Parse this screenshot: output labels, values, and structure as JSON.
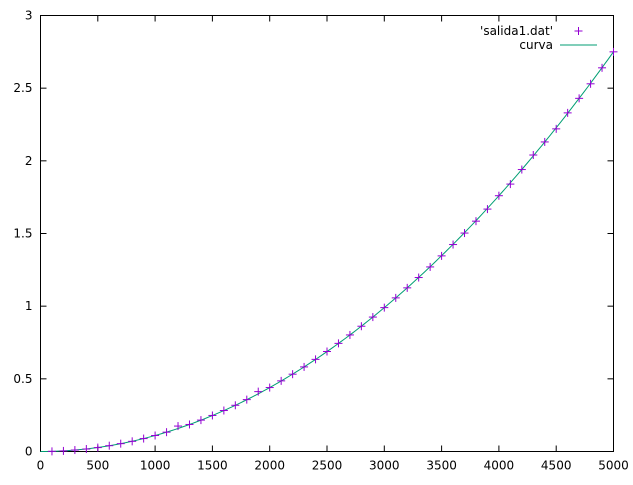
{
  "chart_data": {
    "type": "scatter",
    "title": "",
    "xlabel": "",
    "ylabel": "",
    "xlim": [
      0,
      5000
    ],
    "ylim": [
      0,
      3
    ],
    "x_ticks": [
      0,
      500,
      1000,
      1500,
      2000,
      2500,
      3000,
      3500,
      4000,
      4500,
      5000
    ],
    "y_ticks": [
      0,
      0.5,
      1,
      1.5,
      2,
      2.5,
      3
    ],
    "x_tick_labels": [
      "0",
      "500",
      "1000",
      "1500",
      "2000",
      "2500",
      "3000",
      "3500",
      "4000",
      "4500",
      "5000"
    ],
    "y_tick_labels": [
      "0",
      "0.5",
      "1",
      "1.5",
      "2",
      "2.5",
      "3"
    ],
    "grid": false,
    "legend_position": "top-right",
    "legend": [
      {
        "label": "'salida1.dat'",
        "style": "points",
        "color": "#9400d3",
        "marker": "plus"
      },
      {
        "label": "curva",
        "style": "line",
        "color": "#009e73"
      }
    ],
    "series": [
      {
        "name": "'salida1.dat'",
        "kind": "points",
        "color": "#9400d3",
        "marker": "plus",
        "x": [
          100,
          200,
          300,
          400,
          500,
          600,
          700,
          800,
          900,
          1000,
          1100,
          1200,
          1300,
          1400,
          1500,
          1600,
          1700,
          1800,
          1900,
          2000,
          2100,
          2200,
          2300,
          2400,
          2500,
          2600,
          2700,
          2800,
          2900,
          3000,
          3100,
          3200,
          3300,
          3400,
          3500,
          3600,
          3700,
          3800,
          3900,
          4000,
          4100,
          4200,
          4300,
          4400,
          4500,
          4600,
          4700,
          4800,
          4900,
          5000
        ],
        "y": [
          0.001,
          0.004,
          0.01,
          0.017,
          0.027,
          0.04,
          0.054,
          0.07,
          0.089,
          0.11,
          0.133,
          0.175,
          0.186,
          0.216,
          0.248,
          0.282,
          0.318,
          0.357,
          0.412,
          0.44,
          0.486,
          0.532,
          0.582,
          0.634,
          0.688,
          0.744,
          0.802,
          0.862,
          0.925,
          0.99,
          1.057,
          1.126,
          1.197,
          1.27,
          1.346,
          1.424,
          1.503,
          1.585,
          1.668,
          1.76,
          1.84,
          1.94,
          2.04,
          2.13,
          2.22,
          2.33,
          2.43,
          2.53,
          2.64,
          2.75
        ]
      },
      {
        "name": "curva",
        "kind": "line",
        "color": "#009e73",
        "function": "y = 1.1e-7 * x^2",
        "coefficient": 1.1e-07,
        "exponent": 2
      }
    ]
  }
}
